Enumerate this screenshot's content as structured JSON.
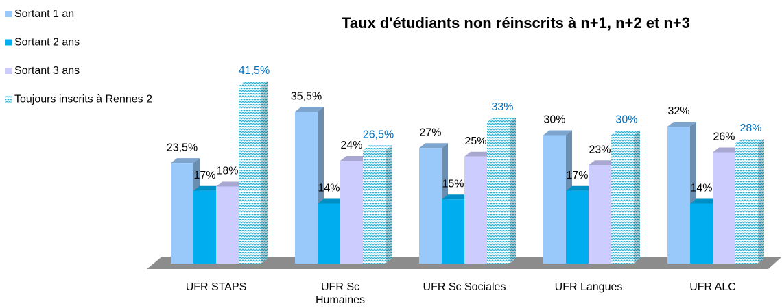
{
  "chart_data": {
    "type": "bar3d",
    "title": "Taux d'étudiants non réinscrits à n+1, n+2 et n+3",
    "categories": [
      "UFR STAPS",
      "UFR Sc\nHumaines",
      "UFR Sc Sociales",
      "UFR Langues",
      "UFR ALC"
    ],
    "series": [
      {
        "name": "Sortant 1 an",
        "color": "#99c9fb",
        "values": [
          23.5,
          35.5,
          27,
          30,
          32
        ],
        "value_labels": [
          "23,5%",
          "35,5%",
          "27%",
          "30%",
          "32%"
        ]
      },
      {
        "name": "Sortant 2 ans",
        "color": "#00aeef",
        "values": [
          17,
          14,
          15,
          17,
          14
        ],
        "value_labels": [
          "17%",
          "14%",
          "15%",
          "17%",
          "14%"
        ]
      },
      {
        "name": "Sortant 3 ans",
        "color": "#ccccff",
        "values": [
          18,
          24,
          25,
          23,
          26
        ],
        "value_labels": [
          "18%",
          "24%",
          "25%",
          "23%",
          "26%"
        ]
      },
      {
        "name": "Toujours inscrits à Rennes 2",
        "color": "#2fb4d6",
        "values": [
          41.5,
          26.5,
          33,
          30,
          28
        ],
        "value_labels": [
          "41,5%",
          "26,5%",
          "33%",
          "30%",
          "28%"
        ]
      }
    ]
  }
}
